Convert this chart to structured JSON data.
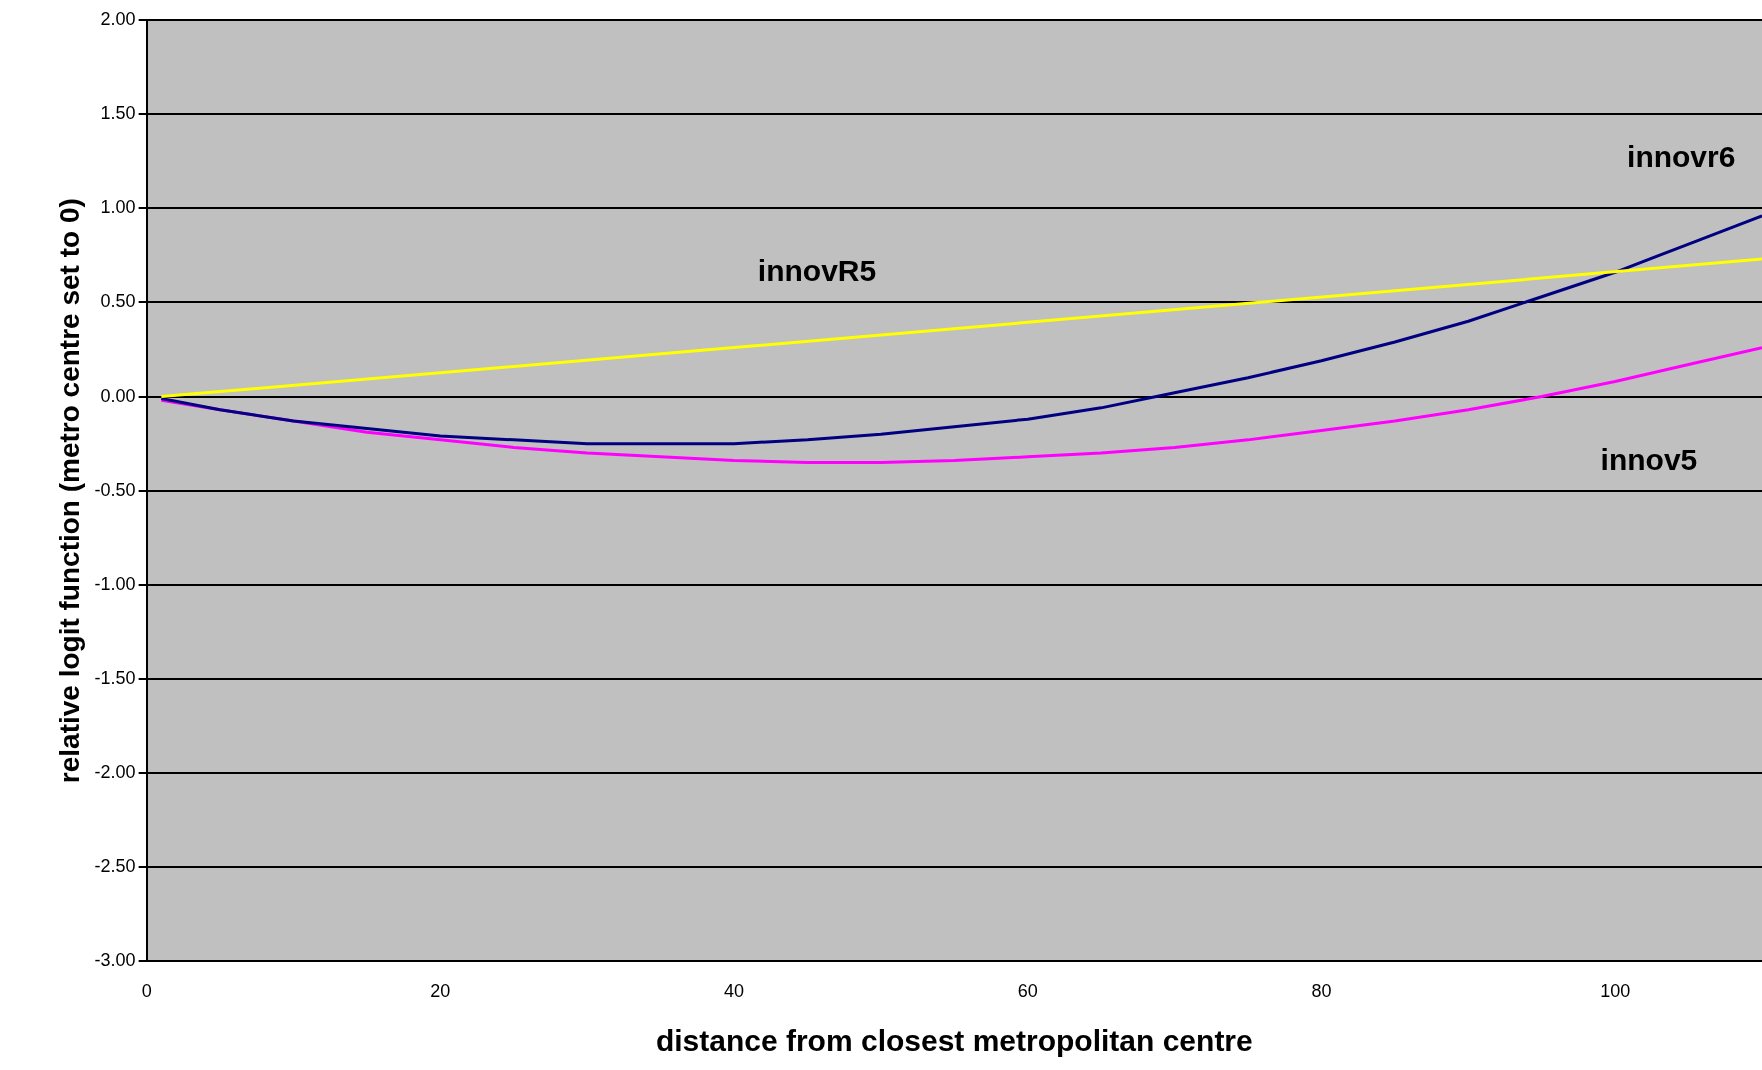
{
  "chart_data": {
    "type": "line",
    "xlabel": "distance from closest metropolitan centre",
    "ylabel": "relative logit function (metro centre set to 0)",
    "xlim": [
      0,
      110
    ],
    "xticks": [
      0,
      20,
      40,
      60,
      80,
      100
    ],
    "ylim": [
      -3,
      2
    ],
    "yticks": [
      {
        "value": -3,
        "label": "-3.00"
      },
      {
        "value": -2.5,
        "label": "-2.50"
      },
      {
        "value": -2,
        "label": "-2.00"
      },
      {
        "value": -1.5,
        "label": "-1.50"
      },
      {
        "value": -1,
        "label": "-1.00"
      },
      {
        "value": -0.5,
        "label": "-0.50"
      },
      {
        "value": 0,
        "label": "0.00"
      },
      {
        "value": 0.5,
        "label": "0.50"
      },
      {
        "value": 1,
        "label": "1.00"
      },
      {
        "value": 1.5,
        "label": "1.50"
      },
      {
        "value": 2,
        "label": "2.00"
      }
    ],
    "grid": "y",
    "legend": false,
    "marker": "none",
    "line_style": "solid",
    "series": [
      {
        "name": "innovR5",
        "color": "#ffff00",
        "x": [
          1,
          40,
          110
        ],
        "values": [
          0,
          0.26,
          0.73
        ]
      },
      {
        "name": "innovr6",
        "color": "#000080",
        "x": [
          1,
          5,
          10,
          15,
          20,
          25,
          30,
          35,
          40,
          45,
          50,
          55,
          60,
          65,
          70,
          75,
          80,
          85,
          90,
          95,
          100,
          105,
          110
        ],
        "values": [
          -0.01,
          -0.07,
          -0.13,
          -0.17,
          -0.21,
          -0.23,
          -0.25,
          -0.25,
          -0.25,
          -0.23,
          -0.2,
          -0.16,
          -0.12,
          -0.06,
          0.02,
          0.1,
          0.19,
          0.29,
          0.4,
          0.53,
          0.66,
          0.81,
          0.96
        ]
      },
      {
        "name": "innov5",
        "color": "#ff00ff",
        "x": [
          1,
          5,
          10,
          15,
          20,
          25,
          30,
          35,
          40,
          45,
          50,
          55,
          60,
          65,
          70,
          75,
          80,
          85,
          90,
          95,
          100,
          105,
          110
        ],
        "values": [
          -0.02,
          -0.07,
          -0.13,
          -0.19,
          -0.23,
          -0.27,
          -0.3,
          -0.32,
          -0.34,
          -0.35,
          -0.35,
          -0.34,
          -0.32,
          -0.3,
          -0.27,
          -0.23,
          -0.18,
          -0.13,
          -0.07,
          0,
          0.08,
          0.17,
          0.26
        ]
      }
    ]
  }
}
